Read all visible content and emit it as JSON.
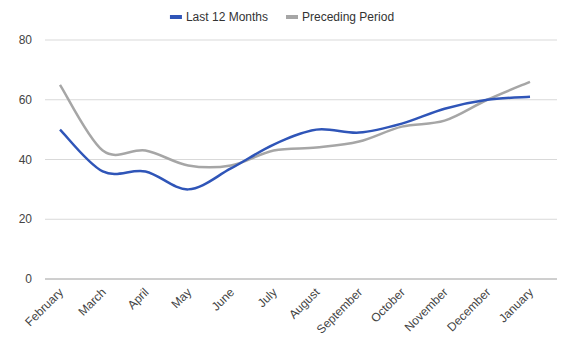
{
  "chart_data": {
    "type": "line",
    "categories": [
      "February",
      "March",
      "April",
      "May",
      "June",
      "July",
      "August",
      "September",
      "October",
      "November",
      "December",
      "January"
    ],
    "series": [
      {
        "name": "Last 12 Months",
        "color": "#2f55b8",
        "values": [
          50,
          36,
          36,
          30,
          37,
          45,
          50,
          49,
          52,
          57,
          60,
          61
        ]
      },
      {
        "name": "Preceding Period",
        "color": "#a6a6a6",
        "values": [
          65,
          43,
          43,
          38,
          38,
          43,
          44,
          46,
          51,
          53,
          60,
          66
        ]
      }
    ],
    "ylim": [
      0,
      80
    ],
    "yticks": [
      0,
      20,
      40,
      60,
      80
    ],
    "grid": true,
    "legend": "top"
  }
}
